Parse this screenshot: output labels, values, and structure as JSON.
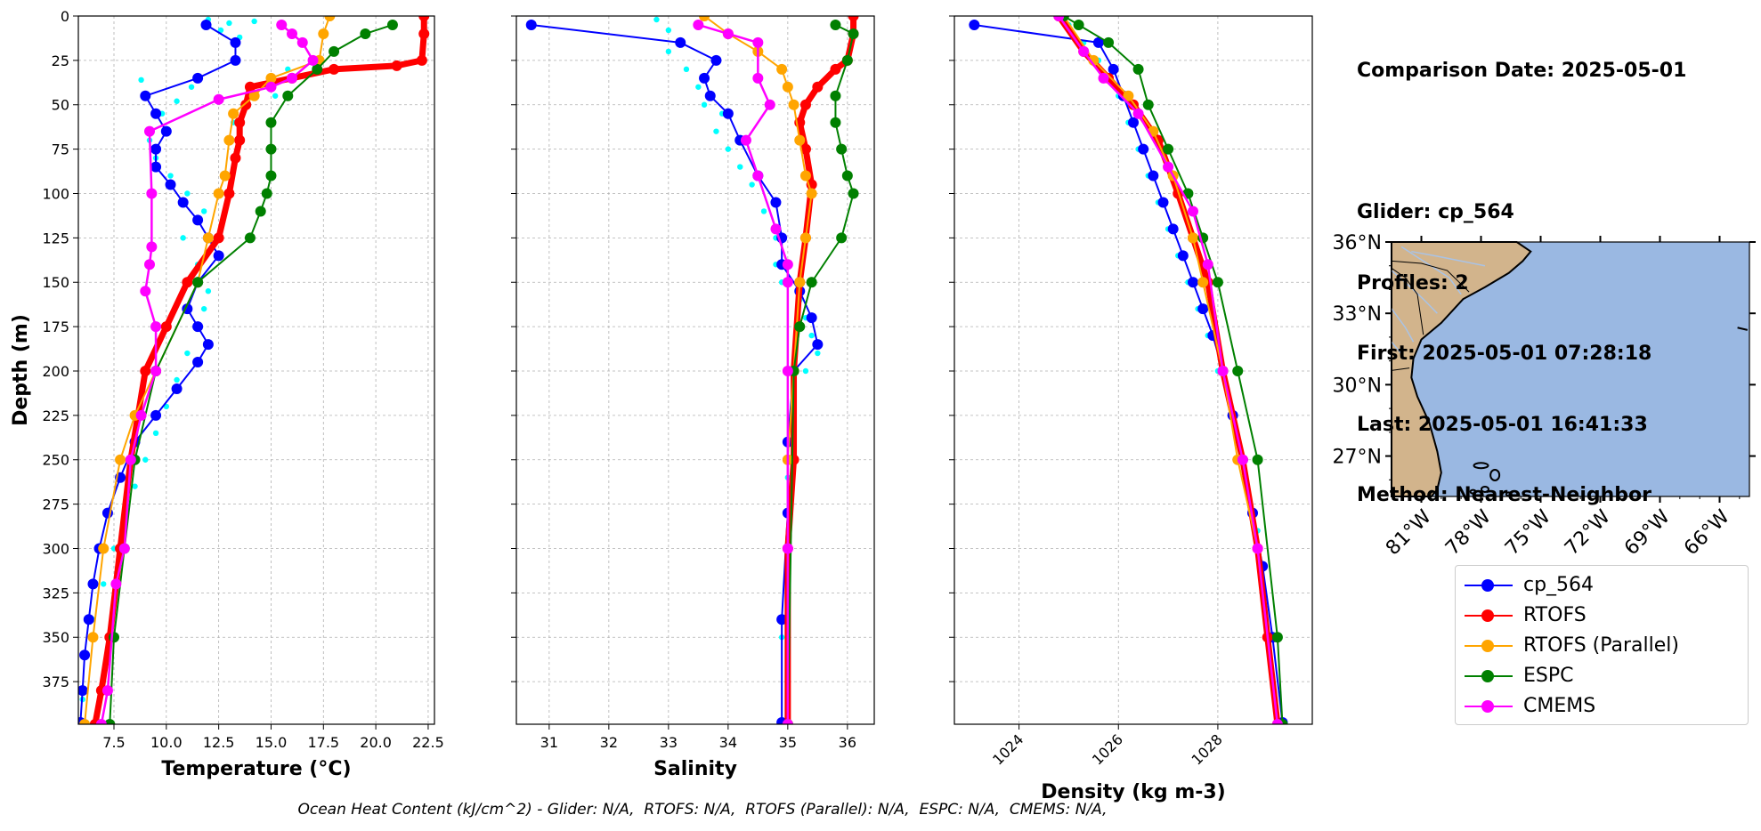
{
  "colors": {
    "cp_564": "#0000ff",
    "RTOFS": "#ff0000",
    "RTOFS (Parallel)": "#ffa500",
    "ESPC": "#008000",
    "CMEMS": "#ff00ff",
    "glider_scatter": "#00ffff",
    "land": "#d2b48c",
    "ocean": "#9ab8e2",
    "grid": "#b0b0b0"
  },
  "info": {
    "comparison": "Comparison Date: 2025-05-01",
    "glider": "Glider: cp_564",
    "profiles": "Profiles: 2",
    "first": "First: 2025-05-01 07:28:18",
    "last": "Last: 2025-05-01 16:41:33",
    "method": "Method: Nearest-Neighbor"
  },
  "legend": [
    {
      "label": "cp_564",
      "color": "#0000ff"
    },
    {
      "label": "RTOFS",
      "color": "#ff0000"
    },
    {
      "label": "RTOFS (Parallel)",
      "color": "#ffa500"
    },
    {
      "label": "ESPC",
      "color": "#008000"
    },
    {
      "label": "CMEMS",
      "color": "#ff00ff"
    }
  ],
  "footer": "Ocean Heat Content (kJ/cm^2) - Glider: N/A,  RTOFS: N/A,  RTOFS (Parallel): N/A,  ESPC: N/A,  CMEMS: N/A,",
  "map": {
    "lat_labels": [
      "36°N",
      "33°N",
      "30°N",
      "27°N"
    ],
    "lat_values": [
      36,
      33,
      30,
      27
    ],
    "lon_labels": [
      "81°W",
      "78°W",
      "75°W",
      "72°W",
      "69°W",
      "66°W"
    ],
    "lon_values": [
      -81,
      -78,
      -75,
      -72,
      -69,
      -66
    ],
    "extent": {
      "lon": [
        -82.5,
        -64.5
      ],
      "lat": [
        25.3,
        36.0
      ]
    }
  },
  "chart_data": [
    {
      "type": "line",
      "title": "",
      "xlabel": "Temperature (°C)",
      "ylabel": "Depth (m)",
      "xlim": [
        5.8,
        22.8
      ],
      "ylim": [
        399,
        0
      ],
      "x_ticks": [
        7.5,
        10.0,
        12.5,
        15.0,
        17.5,
        20.0,
        22.5
      ],
      "x_tick_labels": [
        "7.5",
        "10.0",
        "12.5",
        "15.0",
        "17.5",
        "20.0",
        "22.5"
      ],
      "y_ticks": [
        0,
        25,
        50,
        75,
        100,
        125,
        150,
        175,
        200,
        225,
        250,
        275,
        300,
        325,
        350,
        375
      ],
      "y_tick_labels": [
        "0",
        "25",
        "50",
        "75",
        "100",
        "125",
        "150",
        "175",
        "200",
        "225",
        "250",
        "275",
        "300",
        "325",
        "350",
        "375"
      ],
      "grid": true,
      "scatter": {
        "name": "",
        "x": [
          12.0,
          13.0,
          14.2,
          12.6,
          13.5,
          15.8,
          15.2,
          8.8,
          9.8,
          10.5,
          11.2,
          13.2,
          9.2,
          9.5,
          10.2,
          11.0,
          11.8,
          10.8,
          11.5,
          12.0,
          11.8,
          11.5,
          11.0,
          10.5,
          10.0,
          9.5,
          9.0,
          8.5,
          8.0,
          7.5,
          7.0,
          6.5,
          6.2,
          6.0
        ],
        "y": [
          2,
          4,
          3,
          8,
          12,
          30,
          45,
          36,
          55,
          48,
          40,
          60,
          70,
          80,
          90,
          100,
          110,
          125,
          140,
          155,
          165,
          175,
          190,
          205,
          220,
          235,
          250,
          265,
          280,
          300,
          320,
          340,
          360,
          385
        ]
      },
      "series": [
        {
          "name": "cp_564",
          "x": [
            11.9,
            13.3,
            13.3,
            11.5,
            9.0,
            9.5,
            10.0,
            9.5,
            9.5,
            10.2,
            10.8,
            11.5,
            12.0,
            12.5,
            11.5,
            11.0,
            11.5,
            12.0,
            11.5,
            10.5,
            9.5,
            8.5,
            7.8,
            7.2,
            6.8,
            6.5,
            6.3,
            6.1,
            6.0,
            5.9
          ],
          "y": [
            5,
            15,
            25,
            35,
            45,
            55,
            65,
            75,
            85,
            95,
            105,
            115,
            125,
            135,
            150,
            165,
            175,
            185,
            195,
            210,
            225,
            240,
            260,
            280,
            300,
            320,
            340,
            360,
            380,
            398
          ]
        },
        {
          "name": "RTOFS",
          "x": [
            22.3,
            22.3,
            22.2,
            21.0,
            18.0,
            16.0,
            14.0,
            13.8,
            13.5,
            13.5,
            13.3,
            13.0,
            12.5,
            11.0,
            10.0,
            9.0,
            8.3,
            7.8,
            7.3,
            6.9,
            6.6
          ],
          "y": [
            0,
            10,
            25,
            28,
            30,
            35,
            40,
            50,
            60,
            70,
            80,
            100,
            125,
            150,
            175,
            200,
            250,
            300,
            350,
            380,
            399
          ]
        },
        {
          "name": "RTOFS (Parallel)",
          "x": [
            17.8,
            17.5,
            17.3,
            15.0,
            14.2,
            13.2,
            13.0,
            12.8,
            12.5,
            12.0,
            11.5,
            9.5,
            8.5,
            7.8,
            7.0,
            6.5,
            6.1
          ],
          "y": [
            0,
            10,
            25,
            35,
            45,
            55,
            70,
            90,
            100,
            125,
            150,
            200,
            225,
            250,
            300,
            350,
            399
          ]
        },
        {
          "name": "ESPC",
          "x": [
            20.8,
            19.5,
            18.0,
            17.2,
            15.8,
            15.0,
            15.0,
            15.0,
            14.8,
            14.5,
            14.0,
            11.5,
            9.5,
            8.5,
            8.0,
            7.5,
            7.3
          ],
          "y": [
            5,
            10,
            20,
            30,
            45,
            60,
            75,
            90,
            100,
            110,
            125,
            150,
            200,
            250,
            300,
            350,
            399
          ]
        },
        {
          "name": "CMEMS",
          "x": [
            15.5,
            16.0,
            16.5,
            17.0,
            16.0,
            15.0,
            12.5,
            9.2,
            9.3,
            9.3,
            9.2,
            9.0,
            9.5,
            9.5,
            8.8,
            8.3,
            8.0,
            7.6,
            7.2,
            6.9
          ],
          "y": [
            5,
            10,
            15,
            25,
            35,
            40,
            47,
            65,
            100,
            130,
            140,
            155,
            175,
            200,
            225,
            250,
            300,
            320,
            380,
            399
          ]
        }
      ]
    },
    {
      "type": "line",
      "title": "",
      "xlabel": "Salinity",
      "ylabel": "",
      "xlim": [
        30.45,
        36.45
      ],
      "ylim": [
        399,
        0
      ],
      "x_ticks": [
        31,
        32,
        33,
        34,
        35,
        36
      ],
      "x_tick_labels": [
        "31",
        "32",
        "33",
        "34",
        "35",
        "36"
      ],
      "y_ticks": [
        0,
        25,
        50,
        75,
        100,
        125,
        150,
        175,
        200,
        225,
        250,
        275,
        300,
        325,
        350,
        375
      ],
      "y_tick_labels": [
        "",
        "",
        "",
        "",
        "",
        "",
        "",
        "",
        "",
        "",
        "",
        "",
        "",
        "",
        "",
        ""
      ],
      "grid": true,
      "scatter": {
        "name": "",
        "x": [
          32.8,
          33.0,
          33.2,
          33.0,
          33.3,
          33.5,
          33.6,
          33.9,
          33.8,
          34.0,
          34.2,
          34.4,
          34.6,
          34.8,
          34.8,
          34.9,
          35.2,
          35.3,
          35.4,
          35.5,
          35.3,
          35.1,
          35.0,
          35.0,
          34.9
        ],
        "y": [
          2,
          8,
          15,
          20,
          30,
          40,
          50,
          55,
          65,
          75,
          85,
          95,
          110,
          125,
          140,
          150,
          160,
          170,
          180,
          190,
          200,
          230,
          260,
          300,
          350
        ]
      },
      "series": [
        {
          "name": "cp_564",
          "x": [
            30.7,
            33.2,
            33.8,
            33.6,
            33.7,
            34.0,
            34.2,
            34.5,
            34.8,
            34.9,
            34.9,
            35.2,
            35.4,
            35.5,
            35.1,
            35.0,
            35.0,
            34.9,
            34.9
          ],
          "y": [
            5,
            15,
            25,
            35,
            45,
            55,
            70,
            90,
            105,
            125,
            140,
            155,
            170,
            185,
            200,
            240,
            280,
            340,
            398
          ]
        },
        {
          "name": "RTOFS",
          "x": [
            36.1,
            36.1,
            36.0,
            35.8,
            35.5,
            35.3,
            35.2,
            35.3,
            35.4,
            35.3,
            35.2,
            35.1,
            35.1,
            35.0,
            35.0
          ],
          "y": [
            0,
            10,
            25,
            30,
            40,
            50,
            60,
            75,
            95,
            125,
            150,
            200,
            250,
            300,
            399
          ]
        },
        {
          "name": "RTOFS (Parallel)",
          "x": [
            33.6,
            34.0,
            34.5,
            34.9,
            35.0,
            35.1,
            35.2,
            35.3,
            35.4,
            35.3,
            35.2,
            35.1,
            35.0,
            35.0
          ],
          "y": [
            0,
            10,
            20,
            30,
            40,
            50,
            70,
            90,
            100,
            125,
            150,
            200,
            250,
            399
          ]
        },
        {
          "name": "ESPC",
          "x": [
            35.8,
            36.1,
            36.0,
            35.8,
            35.8,
            35.9,
            36.0,
            36.1,
            35.9,
            35.4,
            35.2,
            35.1,
            35.0
          ],
          "y": [
            5,
            10,
            25,
            45,
            60,
            75,
            90,
            100,
            125,
            150,
            175,
            200,
            399
          ]
        },
        {
          "name": "CMEMS",
          "x": [
            33.5,
            34.0,
            34.5,
            34.5,
            34.7,
            34.3,
            34.5,
            34.8,
            35.0,
            35.0,
            35.0,
            35.0,
            35.0
          ],
          "y": [
            5,
            10,
            15,
            35,
            50,
            70,
            90,
            120,
            140,
            150,
            200,
            300,
            399
          ]
        }
      ]
    },
    {
      "type": "line",
      "title": "",
      "xlabel": "Density (kg m-3)",
      "ylabel": "",
      "xlim": [
        1022.7,
        1029.9
      ],
      "ylim": [
        399,
        0
      ],
      "x_ticks": [
        1024,
        1026,
        1028
      ],
      "x_tick_labels": [
        "1024",
        "1026",
        "1028"
      ],
      "y_ticks": [
        0,
        25,
        50,
        75,
        100,
        125,
        150,
        175,
        200,
        225,
        250,
        275,
        300,
        325,
        350,
        375
      ],
      "y_tick_labels": [
        "",
        "",
        "",
        "",
        "",
        "",
        "",
        "",
        "",
        "",
        "",
        "",
        "",
        "",
        "",
        ""
      ],
      "grid": true,
      "scatter": {
        "name": "",
        "x": [
          1025.0,
          1025.3,
          1025.6,
          1025.8,
          1026.0,
          1026.2,
          1026.4,
          1026.6,
          1026.8,
          1027.0,
          1027.2,
          1027.4,
          1027.6,
          1027.8,
          1028.0,
          1028.4,
          1028.8
        ],
        "y": [
          5,
          15,
          25,
          35,
          45,
          60,
          75,
          90,
          105,
          120,
          135,
          150,
          165,
          180,
          200,
          240,
          290
        ]
      },
      "series": [
        {
          "name": "cp_564",
          "x": [
            1023.1,
            1025.6,
            1025.9,
            1026.1,
            1026.3,
            1026.5,
            1026.7,
            1026.9,
            1027.1,
            1027.3,
            1027.5,
            1027.7,
            1027.9,
            1028.1,
            1028.3,
            1028.5,
            1028.7,
            1028.9,
            1029.1,
            1029.3
          ],
          "y": [
            5,
            15,
            30,
            45,
            60,
            75,
            90,
            105,
            120,
            135,
            150,
            165,
            180,
            200,
            225,
            250,
            280,
            310,
            350,
            398
          ]
        },
        {
          "name": "RTOFS",
          "x": [
            1024.8,
            1025.3,
            1025.8,
            1026.3,
            1026.8,
            1027.2,
            1027.5,
            1027.8,
            1028.1,
            1028.5,
            1028.8,
            1029.0,
            1029.2
          ],
          "y": [
            0,
            20,
            35,
            50,
            70,
            100,
            125,
            150,
            200,
            250,
            300,
            350,
            399
          ]
        },
        {
          "name": "RTOFS (Parallel)",
          "x": [
            1024.9,
            1025.5,
            1026.2,
            1026.7,
            1027.1,
            1027.5,
            1027.7,
            1028.1,
            1028.4,
            1028.8,
            1029.2
          ],
          "y": [
            0,
            25,
            45,
            65,
            90,
            125,
            150,
            200,
            250,
            300,
            399
          ]
        },
        {
          "name": "ESPC",
          "x": [
            1024.9,
            1025.2,
            1025.8,
            1026.4,
            1026.6,
            1027.0,
            1027.4,
            1027.7,
            1028.0,
            1028.4,
            1028.8,
            1029.2,
            1029.3
          ],
          "y": [
            0,
            5,
            15,
            30,
            50,
            75,
            100,
            125,
            150,
            200,
            250,
            350,
            399
          ]
        },
        {
          "name": "CMEMS",
          "x": [
            1024.8,
            1025.3,
            1025.7,
            1026.4,
            1027.0,
            1027.5,
            1027.8,
            1028.1,
            1028.5,
            1028.8,
            1029.2
          ],
          "y": [
            0,
            20,
            35,
            55,
            85,
            110,
            140,
            200,
            250,
            300,
            399
          ]
        }
      ]
    }
  ]
}
